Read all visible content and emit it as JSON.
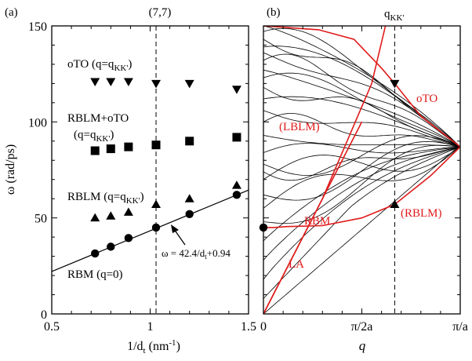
{
  "panel_a": {
    "label": "(a)",
    "top_label": "(7,7)",
    "xlabel": "1/d",
    "xlabel_sub": "t",
    "xlabel_unit": " (nm",
    "xlabel_sup": "-1",
    "xlabel_close": ")",
    "ylabel": "ω (rad/ps)",
    "annotations": {
      "oto": "oTO (q=q",
      "oto_sub": "KK'",
      "oto_close": ")",
      "rblm_oto_1": "RBLM+oTO",
      "rblm_oto_2": "(q=q",
      "rblm_oto_2_sub": "KK'",
      "rblm_oto_2_close": ")",
      "rblm": "RBLM (q=q",
      "rblm_sub": "KK'",
      "rblm_close": ")",
      "rbm": "RBM (q=0)",
      "fit": "ω = 42.4/d",
      "fit_sub": "t",
      "fit_tail": "+0.94"
    }
  },
  "panel_b": {
    "label": "(b)",
    "top_label": "q",
    "top_label_sub": "KK'",
    "xlabel": "q",
    "xticks": [
      "0",
      "π/2a",
      "π/a"
    ],
    "labels": {
      "oto": "oTO",
      "lblm": "(LBLM)",
      "rbm": "RBM",
      "rblm": "(RBLM)",
      "la": "LA"
    }
  },
  "chart_data": [
    {
      "type": "scatter",
      "title": "(a)",
      "xlabel": "1/dt (nm-1)",
      "ylabel": "ω (rad/ps)",
      "xlim": [
        0.5,
        1.5
      ],
      "ylim": [
        0,
        150
      ],
      "xticks": [
        "0.5",
        "1",
        "1.5"
      ],
      "yticks": [
        "0",
        "50",
        "100",
        "150"
      ],
      "reference_x": 1.03,
      "series": [
        {
          "name": "oTO (q=qKK')",
          "marker": "triangle-down",
          "x": [
            0.72,
            0.8,
            0.89,
            1.03,
            1.2,
            1.44
          ],
          "y": [
            121,
            121,
            121,
            120,
            120,
            117
          ]
        },
        {
          "name": "RBLM+oTO (q=qKK')",
          "marker": "square",
          "x": [
            0.72,
            0.8,
            0.89,
            1.03,
            1.2,
            1.44
          ],
          "y": [
            85,
            86,
            87,
            88,
            90,
            92
          ]
        },
        {
          "name": "RBLM (q=qKK')",
          "marker": "triangle-up",
          "x": [
            0.72,
            0.8,
            0.89,
            1.03,
            1.2,
            1.44
          ],
          "y": [
            50,
            51,
            53,
            57,
            60,
            67
          ]
        },
        {
          "name": "RBM (q=0)",
          "marker": "circle",
          "x": [
            0.72,
            0.8,
            0.89,
            1.03,
            1.2,
            1.44
          ],
          "y": [
            31.5,
            35,
            39.5,
            45,
            52,
            62
          ]
        },
        {
          "name": "fit ω = 42.4/dt+0.94",
          "marker": "line",
          "x": [
            0.5,
            1.5
          ],
          "y": [
            22.1,
            64.5
          ]
        }
      ]
    },
    {
      "type": "line",
      "title": "(b)",
      "xlabel": "q",
      "xlim": [
        0,
        1
      ],
      "ylim": [
        0,
        150
      ],
      "xticks": [
        "0",
        "π/2a",
        "π/a"
      ],
      "reference_x": 0.667,
      "highlighted_points": [
        {
          "marker": "triangle-down",
          "x": 0.667,
          "y": 120
        },
        {
          "marker": "triangle-up",
          "x": 0.667,
          "y": 57
        },
        {
          "marker": "circle",
          "x": 0.0,
          "y": 45
        }
      ],
      "red_branches": [
        {
          "name": "oTO",
          "x": [
            0,
            0.28,
            0.46,
            0.6,
            0.667,
            0.8,
            1.0
          ],
          "y": [
            150,
            148,
            143,
            128,
            120,
            103,
            87
          ]
        },
        {
          "name": "LBLM",
          "x": [
            0.0,
            0.3,
            0.55,
            0.62
          ],
          "y": [
            0,
            60,
            120,
            150
          ]
        },
        {
          "name": "RBM-RBLM",
          "x": [
            0.0,
            0.05,
            0.12,
            0.3,
            0.5,
            0.667,
            0.85,
            1.0
          ],
          "y": [
            45,
            45,
            45.5,
            46,
            50,
            57,
            72,
            87
          ]
        },
        {
          "name": "LA",
          "x": [
            0.0,
            0.15,
            0.3,
            0.4,
            0.5
          ],
          "y": [
            0,
            30,
            60,
            80,
            100
          ]
        }
      ]
    }
  ]
}
